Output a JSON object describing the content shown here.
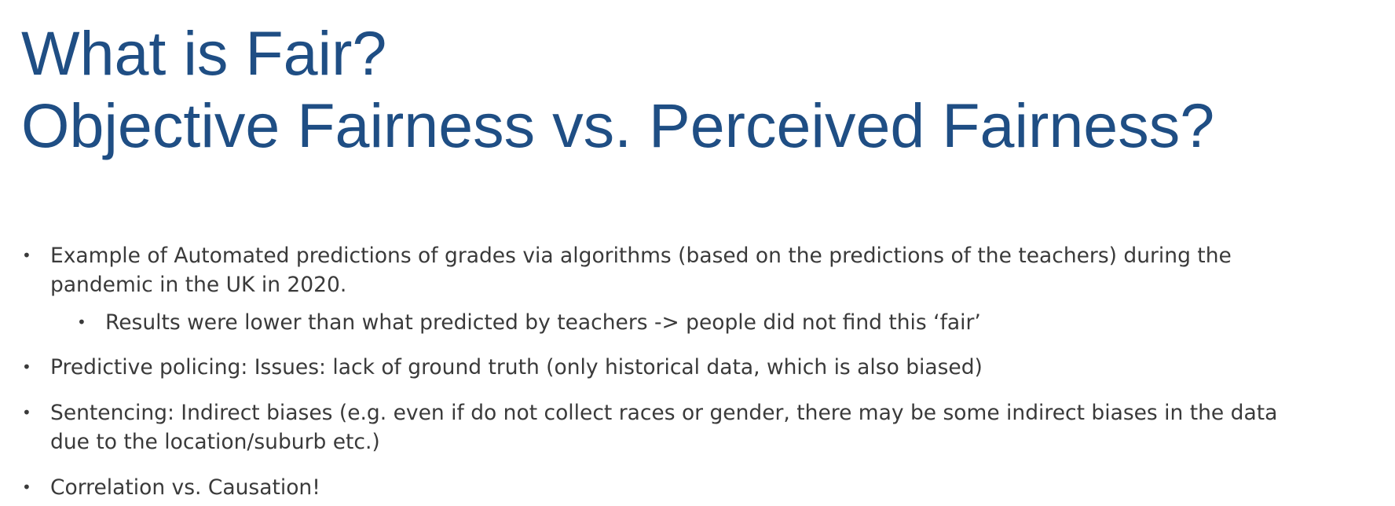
{
  "slide": {
    "title_line1": "What is Fair?",
    "title_line2": "Objective Fairness vs. Perceived Fairness?",
    "bullet_symbol": "•",
    "bullets": [
      {
        "line1": "Example of Automated predictions of grades via algorithms (based on the predictions of the teachers) during the",
        "line2": "pandemic in the UK in 2020."
      },
      {
        "line1": "Results were lower than what predicted by teachers -> people did not find this ‘fair’"
      },
      {
        "line1": "Predictive policing: Issues: lack of ground truth (only historical data, which is also biased)"
      },
      {
        "line1": "Sentencing: Indirect biases (e.g. even if do not collect races or gender, there may be some indirect biases in the data",
        "line2": "due to the location/suburb etc.)"
      },
      {
        "line1": "Correlation vs. Causation!"
      }
    ]
  },
  "colors": {
    "title": "#1f4e84",
    "body": "#3a3a3a",
    "background": "#ffffff"
  }
}
